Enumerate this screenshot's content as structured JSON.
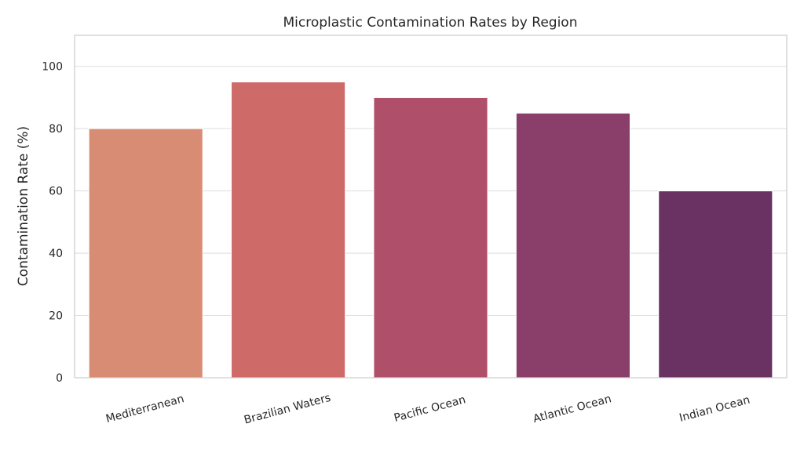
{
  "chart_data": {
    "type": "bar",
    "title": "Microplastic Contamination Rates by Region",
    "xlabel": "",
    "ylabel": "Contamination Rate (%)",
    "categories": [
      "Mediterranean",
      "Brazilian Waters",
      "Pacific Ocean",
      "Atlantic Ocean",
      "Indian Ocean"
    ],
    "values": [
      80,
      95,
      90,
      85,
      60
    ],
    "colors": [
      "#d98c74",
      "#ce6b69",
      "#b04f6a",
      "#8a3f6b",
      "#6a3262"
    ],
    "ylim": [
      0,
      110
    ],
    "yticks": [
      0,
      20,
      40,
      60,
      80,
      100
    ],
    "grid": true,
    "legend": "none"
  }
}
